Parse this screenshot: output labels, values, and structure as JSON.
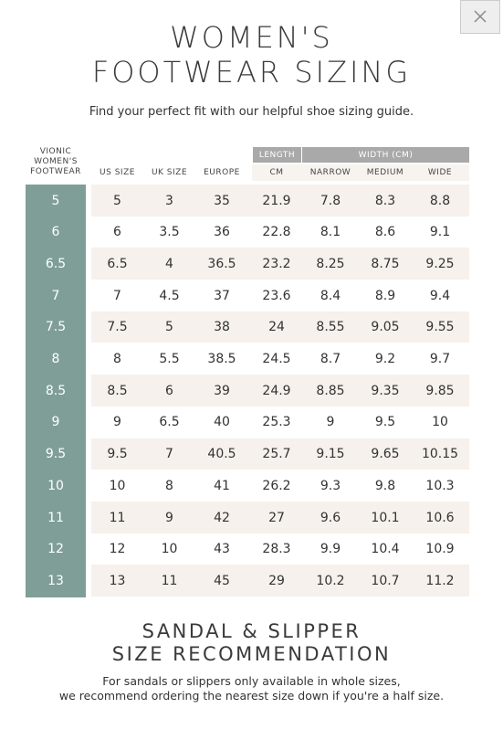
{
  "header": {
    "title_lines": [
      "WOMEN'S",
      "FOOTWEAR SIZING"
    ],
    "subtitle": "Find your perfect fit with our helpful shoe sizing guide."
  },
  "table": {
    "groups": [
      {
        "label": "LENGTH",
        "from": 4,
        "to": 4
      },
      {
        "label": "WIDTH (CM)",
        "from": 5,
        "to": 7
      }
    ],
    "first_header_lines": [
      "VIONIC",
      "WOMEN'S",
      "FOOTWEAR"
    ],
    "columns": [
      "US SIZE",
      "UK SIZE",
      "EUROPE",
      "CM",
      "NARROW",
      "MEDIUM",
      "WIDE"
    ],
    "rows": [
      [
        "5",
        "5",
        "3",
        "35",
        "21.9",
        "7.8",
        "8.3",
        "8.8"
      ],
      [
        "6",
        "6",
        "3.5",
        "36",
        "22.8",
        "8.1",
        "8.6",
        "9.1"
      ],
      [
        "6.5",
        "6.5",
        "4",
        "36.5",
        "23.2",
        "8.25",
        "8.75",
        "9.25"
      ],
      [
        "7",
        "7",
        "4.5",
        "37",
        "23.6",
        "8.4",
        "8.9",
        "9.4"
      ],
      [
        "7.5",
        "7.5",
        "5",
        "38",
        "24",
        "8.55",
        "9.05",
        "9.55"
      ],
      [
        "8",
        "8",
        "5.5",
        "38.5",
        "24.5",
        "8.7",
        "9.2",
        "9.7"
      ],
      [
        "8.5",
        "8.5",
        "6",
        "39",
        "24.9",
        "8.85",
        "9.35",
        "9.85"
      ],
      [
        "9",
        "9",
        "6.5",
        "40",
        "25.3",
        "9",
        "9.5",
        "10"
      ],
      [
        "9.5",
        "9.5",
        "7",
        "40.5",
        "25.7",
        "9.15",
        "9.65",
        "10.15"
      ],
      [
        "10",
        "10",
        "8",
        "41",
        "26.2",
        "9.3",
        "9.8",
        "10.3"
      ],
      [
        "11",
        "11",
        "9",
        "42",
        "27",
        "9.6",
        "10.1",
        "10.6"
      ],
      [
        "12",
        "12",
        "10",
        "43",
        "28.3",
        "9.9",
        "10.4",
        "10.9"
      ],
      [
        "13",
        "13",
        "11",
        "45",
        "29",
        "10.2",
        "10.7",
        "11.2"
      ]
    ]
  },
  "footer": {
    "title_lines": [
      "SANDAL & SLIPPER",
      "SIZE RECOMMENDATION"
    ],
    "note_lines": [
      "For sandals or slippers only available in whole sizes,",
      "we recommend ordering the nearest size down if you're a half size."
    ]
  }
}
